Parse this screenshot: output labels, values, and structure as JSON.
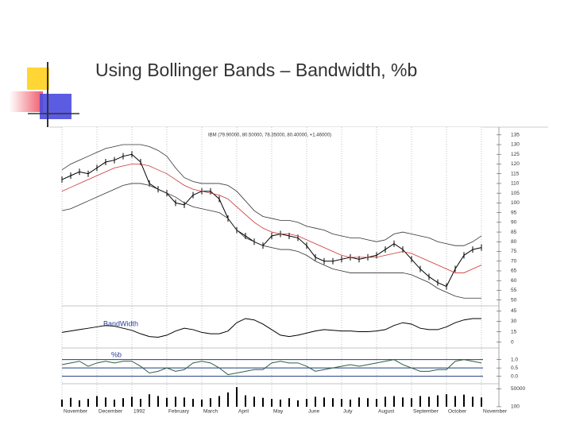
{
  "slide_title": "Using Bollinger Bands – Bandwidth, %b",
  "chart_data": [
    {
      "type": "line",
      "annotations": [
        "IBM (79.90000, 80.50000, 78.35000, 80.40000, +1.46000)"
      ],
      "ylim": [
        47,
        139
      ],
      "yticks": [
        135,
        130,
        125,
        120,
        115,
        110,
        105,
        100,
        95,
        90,
        85,
        80,
        75,
        70,
        65,
        60,
        55,
        50
      ],
      "grid": false,
      "series": [
        {
          "color": "#000000",
          "values": [
            112,
            114,
            116,
            115,
            118,
            121,
            122,
            124,
            125,
            121,
            110,
            107,
            105,
            100,
            99,
            104,
            106,
            106,
            102,
            92,
            86,
            83,
            80,
            78,
            83,
            84,
            83,
            82,
            78,
            72,
            70,
            70,
            71,
            72,
            71,
            72,
            73,
            76,
            79,
            76,
            71,
            66,
            62,
            59,
            57,
            66,
            73,
            76,
            77
          ]
        },
        {
          "color": "#cc3333",
          "values": [
            106,
            108,
            110,
            112,
            114,
            116,
            118,
            119,
            120,
            120,
            119,
            117,
            115,
            112,
            109,
            107,
            106,
            105,
            104,
            102,
            98,
            94,
            90,
            87,
            85,
            84,
            84,
            83,
            81,
            79,
            77,
            75,
            73,
            72,
            72,
            72,
            72,
            73,
            74,
            75,
            74,
            72,
            70,
            68,
            66,
            64,
            64,
            66,
            68
          ]
        },
        {
          "color": "#333333",
          "values": [
            117,
            120,
            122,
            124,
            126,
            128,
            129,
            130,
            130,
            130,
            129,
            127,
            124,
            118,
            113,
            111,
            110,
            110,
            110,
            109,
            106,
            101,
            96,
            93,
            92,
            91,
            91,
            90,
            88,
            87,
            86,
            84,
            83,
            82,
            82,
            81,
            80,
            81,
            84,
            85,
            84,
            83,
            82,
            80,
            79,
            78,
            78,
            80,
            83
          ]
        },
        {
          "color": "#333333",
          "values": [
            96,
            97,
            99,
            101,
            103,
            105,
            107,
            109,
            110,
            110,
            109,
            107,
            105,
            103,
            100,
            98,
            97,
            96,
            95,
            92,
            86,
            82,
            80,
            78,
            77,
            76,
            76,
            75,
            73,
            70,
            68,
            66,
            65,
            64,
            64,
            64,
            64,
            64,
            64,
            64,
            63,
            61,
            59,
            56,
            54,
            52,
            51,
            51,
            51
          ]
        }
      ]
    },
    {
      "type": "line",
      "title": "BandWidth",
      "ylim": [
        -5,
        50
      ],
      "yticks": [
        45,
        30,
        15,
        0
      ],
      "grid": false,
      "series": [
        {
          "color": "#000000",
          "values": [
            14,
            16,
            18,
            20,
            22,
            24,
            23,
            20,
            17,
            12,
            8,
            7,
            10,
            16,
            20,
            18,
            14,
            12,
            12,
            16,
            28,
            34,
            32,
            26,
            18,
            10,
            8,
            10,
            13,
            16,
            18,
            17,
            16,
            16,
            15,
            15,
            16,
            18,
            24,
            28,
            26,
            20,
            18,
            18,
            22,
            28,
            32,
            34,
            34
          ]
        }
      ]
    },
    {
      "type": "line",
      "title": "%b",
      "ylim": [
        -0.3,
        1.6
      ],
      "yticks": [
        {
          "value": 1,
          "label": "1.0"
        },
        {
          "value": 0.5,
          "label": "0.5"
        },
        {
          "value": 0,
          "label": "0.0"
        }
      ],
      "grid": true,
      "grid_color": "#1f3c88",
      "series": [
        {
          "color": "#2f5f3f",
          "values": [
            0.7,
            0.8,
            0.9,
            0.6,
            0.8,
            0.9,
            0.8,
            0.9,
            0.9,
            0.6,
            0.2,
            0.3,
            0.5,
            0.3,
            0.4,
            0.8,
            0.9,
            0.8,
            0.5,
            0.1,
            0.2,
            0.3,
            0.4,
            0.4,
            0.8,
            0.9,
            0.8,
            0.8,
            0.6,
            0.3,
            0.4,
            0.5,
            0.6,
            0.7,
            0.6,
            0.7,
            0.8,
            0.9,
            1.0,
            0.7,
            0.5,
            0.3,
            0.3,
            0.4,
            0.4,
            0.9,
            1.0,
            0.9,
            0.8
          ]
        }
      ]
    },
    {
      "type": "bar",
      "categories": [
        "November",
        null,
        null,
        null,
        "December",
        null,
        null,
        null,
        "1992",
        null,
        null,
        null,
        "February",
        null,
        null,
        null,
        "March",
        null,
        null,
        null,
        "April",
        null,
        null,
        null,
        "May",
        null,
        null,
        null,
        "June",
        null,
        null,
        null,
        "July",
        null,
        null,
        null,
        "August",
        null,
        null,
        null,
        "September",
        null,
        null,
        null,
        "October",
        null,
        null,
        null,
        "November"
      ],
      "ylim": [
        0,
        60000
      ],
      "yticks": [
        50000,
        100
      ],
      "grid": false,
      "color": "#000000",
      "values": [
        20000,
        25000,
        18000,
        22000,
        30000,
        26000,
        20000,
        24000,
        28000,
        22000,
        35000,
        30000,
        25000,
        28000,
        26000,
        22000,
        20000,
        24000,
        30000,
        40000,
        55000,
        32000,
        28000,
        25000,
        22000,
        20000,
        24000,
        18000,
        22000,
        28000,
        26000,
        24000,
        22000,
        20000,
        26000,
        24000,
        22000,
        28000,
        30000,
        26000,
        24000,
        30000,
        28000,
        32000,
        35000,
        30000,
        34000,
        28000,
        26000
      ]
    }
  ]
}
